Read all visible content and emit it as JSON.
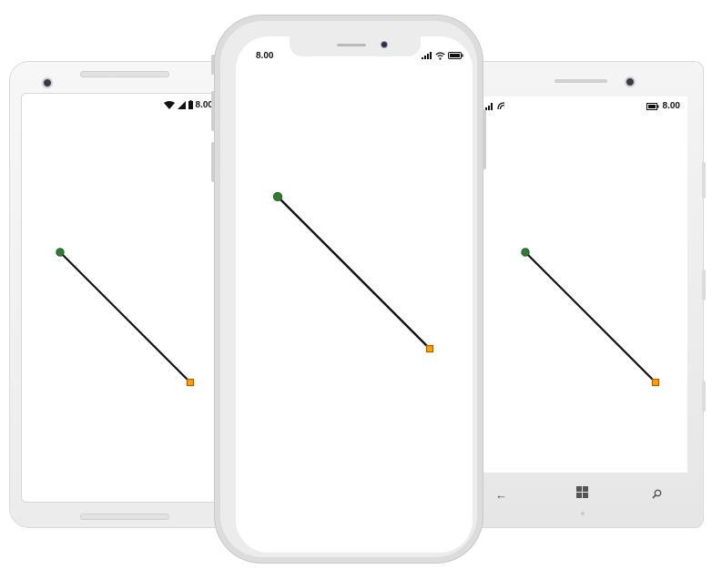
{
  "android": {
    "status_time": "8.00",
    "connector": {
      "stroke": "#111111",
      "source_marker": "green-circle",
      "target_marker": "orange-square"
    }
  },
  "iphone": {
    "status_time": "8.00",
    "connector": {
      "stroke": "#111111",
      "source_marker": "green-circle",
      "target_marker": "orange-square"
    }
  },
  "windows": {
    "status_time": "8.00",
    "nav_icons": [
      "back-arrow-icon",
      "windows-logo-icon",
      "search-icon"
    ],
    "connector": {
      "stroke": "#111111",
      "source_marker": "green-circle",
      "target_marker": "orange-square"
    }
  },
  "colors": {
    "source_fill": "#2e7d32",
    "target_fill": "#f7a400",
    "target_border": "#b35900",
    "device_frame": "#e6e6e6"
  }
}
